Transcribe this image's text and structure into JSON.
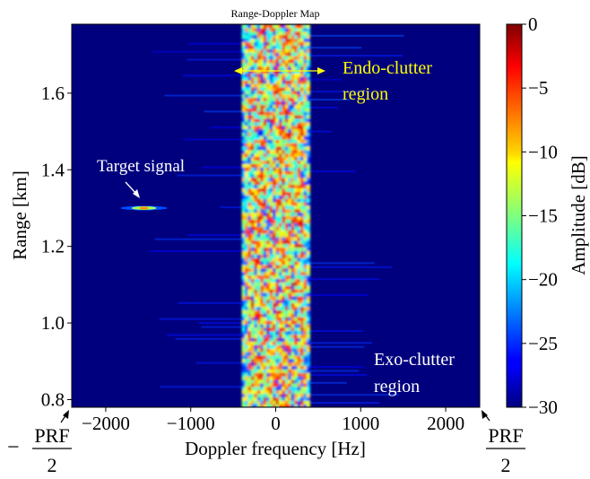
{
  "chart_data": {
    "type": "heatmap",
    "title": "Range-Doppler Map",
    "xlabel": "Doppler frequency [Hz]",
    "ylabel": "Range [km]",
    "xlim": [
      -2400,
      2400
    ],
    "ylim": [
      0.78,
      1.78
    ],
    "x_ticks": [
      -2000,
      -1000,
      0,
      1000,
      2000
    ],
    "x_tick_labels": [
      "−2000",
      "−1000",
      "0",
      "1000",
      "2000"
    ],
    "y_ticks": [
      0.8,
      1.0,
      1.2,
      1.4,
      1.6
    ],
    "y_tick_labels": [
      "0.8",
      "1.0",
      "1.2",
      "1.4",
      "1.6"
    ],
    "colorbar": {
      "label": "Amplitude [dB]",
      "min": -30,
      "max": 0,
      "ticks": [
        0,
        -5,
        -10,
        -15,
        -20,
        -25,
        -30
      ],
      "tick_labels": [
        "0",
        "−5",
        "−10",
        "−15",
        "−20",
        "−25",
        "−30"
      ],
      "colormap": "jet"
    },
    "background_level_db": -30,
    "clutter_band": {
      "x_range_hz": [
        -400,
        400
      ],
      "level_db_range": [
        -20,
        -2
      ]
    },
    "target": {
      "doppler_hz": -1550,
      "range_km": 1.3,
      "level_db": -8
    },
    "annotations": {
      "target_signal": "Target signal",
      "endo_clutter_line1": "Endo-clutter",
      "endo_clutter_line2": "region",
      "exo_clutter_line1": "Exo-clutter",
      "exo_clutter_line2": "region"
    },
    "prf_labels": {
      "left_sign": "−",
      "numerator": "PRF",
      "denominator": "2"
    },
    "colors": {
      "background": "#00007f",
      "annotation_yellow": "#ffff00",
      "annotation_white": "#ffffff"
    }
  }
}
